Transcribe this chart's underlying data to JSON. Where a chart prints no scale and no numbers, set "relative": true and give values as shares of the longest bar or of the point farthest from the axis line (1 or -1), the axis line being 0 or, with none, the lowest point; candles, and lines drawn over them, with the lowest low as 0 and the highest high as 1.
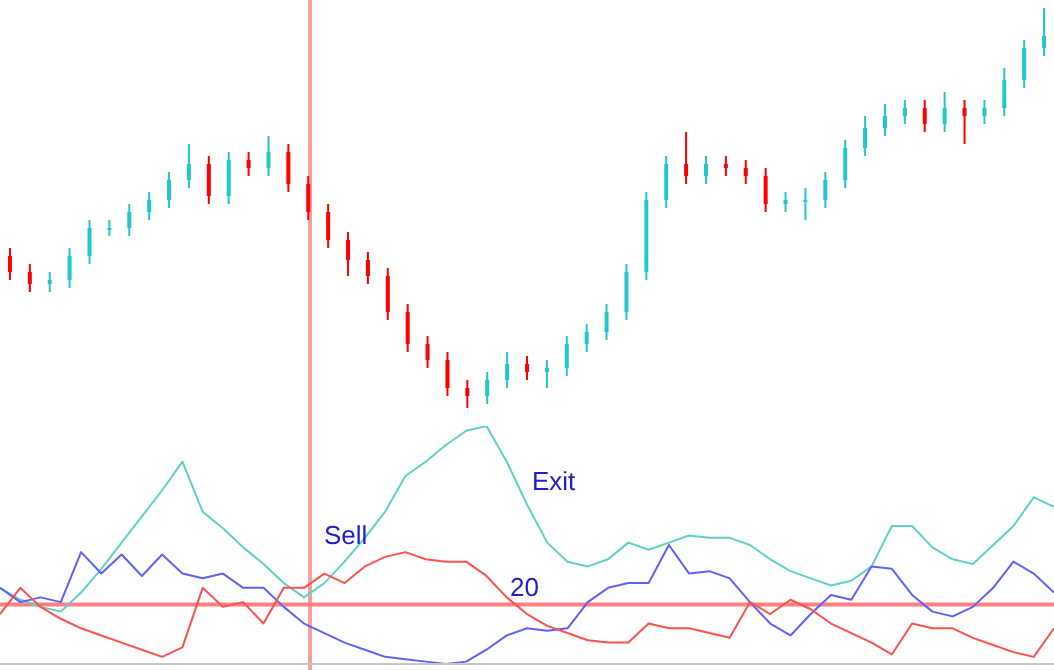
{
  "chart_data": [
    {
      "type": "candlestick",
      "relative": true,
      "categories": [
        null,
        null,
        null,
        null,
        null,
        null,
        null,
        null,
        null,
        null,
        null,
        null,
        null,
        null,
        null,
        null,
        null,
        null,
        null,
        null,
        null,
        null,
        null,
        null,
        null,
        null,
        null,
        null,
        null,
        null,
        null,
        null,
        null,
        null,
        null,
        null,
        null,
        null,
        null,
        null,
        null,
        null,
        null,
        null,
        null,
        null,
        null,
        null,
        null,
        null,
        null,
        null,
        null
      ],
      "ohlc": [
        [
          0.38,
          0.4,
          0.32,
          0.34
        ],
        [
          0.34,
          0.36,
          0.29,
          0.31
        ],
        [
          0.31,
          0.34,
          0.29,
          0.32
        ],
        [
          0.32,
          0.4,
          0.3,
          0.38
        ],
        [
          0.38,
          0.47,
          0.36,
          0.45
        ],
        [
          0.45,
          0.47,
          0.43,
          0.45
        ],
        [
          0.45,
          0.51,
          0.43,
          0.49
        ],
        [
          0.49,
          0.54,
          0.47,
          0.52
        ],
        [
          0.52,
          0.59,
          0.5,
          0.57
        ],
        [
          0.57,
          0.66,
          0.55,
          0.61
        ],
        [
          0.61,
          0.63,
          0.51,
          0.53
        ],
        [
          0.53,
          0.64,
          0.51,
          0.62
        ],
        [
          0.62,
          0.64,
          0.58,
          0.6
        ],
        [
          0.6,
          0.68,
          0.58,
          0.64
        ],
        [
          0.64,
          0.66,
          0.54,
          0.56
        ],
        [
          0.56,
          0.58,
          0.47,
          0.49
        ],
        [
          0.49,
          0.51,
          0.4,
          0.42
        ],
        [
          0.42,
          0.44,
          0.33,
          0.37
        ],
        [
          0.37,
          0.39,
          0.31,
          0.33
        ],
        [
          0.33,
          0.35,
          0.22,
          0.24
        ],
        [
          0.24,
          0.26,
          0.14,
          0.16
        ],
        [
          0.16,
          0.18,
          0.1,
          0.12
        ],
        [
          0.12,
          0.14,
          0.03,
          0.05
        ],
        [
          0.05,
          0.07,
          0.0,
          0.03
        ],
        [
          0.03,
          0.09,
          0.01,
          0.07
        ],
        [
          0.07,
          0.14,
          0.05,
          0.11
        ],
        [
          0.11,
          0.13,
          0.07,
          0.09
        ],
        [
          0.09,
          0.12,
          0.05,
          0.1
        ],
        [
          0.1,
          0.18,
          0.08,
          0.16
        ],
        [
          0.16,
          0.21,
          0.14,
          0.19
        ],
        [
          0.19,
          0.26,
          0.17,
          0.24
        ],
        [
          0.24,
          0.36,
          0.22,
          0.34
        ],
        [
          0.34,
          0.54,
          0.32,
          0.52
        ],
        [
          0.52,
          0.63,
          0.5,
          0.61
        ],
        [
          0.61,
          0.69,
          0.56,
          0.58
        ],
        [
          0.58,
          0.63,
          0.56,
          0.61
        ],
        [
          0.61,
          0.63,
          0.58,
          0.6
        ],
        [
          0.6,
          0.62,
          0.56,
          0.58
        ],
        [
          0.58,
          0.6,
          0.49,
          0.51
        ],
        [
          0.51,
          0.54,
          0.49,
          0.52
        ],
        [
          0.52,
          0.55,
          0.47,
          0.52
        ],
        [
          0.52,
          0.59,
          0.5,
          0.57
        ],
        [
          0.57,
          0.67,
          0.55,
          0.65
        ],
        [
          0.65,
          0.73,
          0.63,
          0.7
        ],
        [
          0.7,
          0.76,
          0.68,
          0.73
        ],
        [
          0.73,
          0.77,
          0.71,
          0.75
        ],
        [
          0.75,
          0.77,
          0.69,
          0.71
        ],
        [
          0.71,
          0.79,
          0.69,
          0.75
        ],
        [
          0.75,
          0.77,
          0.66,
          0.73
        ],
        [
          0.73,
          0.77,
          0.71,
          0.75
        ],
        [
          0.75,
          0.85,
          0.73,
          0.82
        ],
        [
          0.82,
          0.92,
          0.8,
          0.9
        ],
        [
          0.9,
          1.0,
          0.88,
          0.93
        ]
      ],
      "colors": [
        "#ff0000",
        "#ff0000",
        "#20c8c8",
        "#20c8c8",
        "#20c8c8",
        "#20c8c8",
        "#20c8c8",
        "#20c8c8",
        "#20c8c8",
        "#20c8c8",
        "#ff0000",
        "#20c8c8",
        "#ff0000",
        "#20c8c8",
        "#ff0000",
        "#ff0000",
        "#ff0000",
        "#ff0000",
        "#ff0000",
        "#ff0000",
        "#ff0000",
        "#ff0000",
        "#ff0000",
        "#ff0000",
        "#20c8c8",
        "#20c8c8",
        "#ff0000",
        "#20c8c8",
        "#20c8c8",
        "#20c8c8",
        "#20c8c8",
        "#20c8c8",
        "#20c8c8",
        "#20c8c8",
        "#ff0000",
        "#20c8c8",
        "#ff0000",
        "#ff0000",
        "#ff0000",
        "#20c8c8",
        "#20c8c8",
        "#20c8c8",
        "#20c8c8",
        "#20c8c8",
        "#20c8c8",
        "#20c8c8",
        "#ff0000",
        "#20c8c8",
        "#ff0000",
        "#20c8c8",
        "#20c8c8",
        "#20c8c8",
        "#20c8c8"
      ]
    },
    {
      "type": "line",
      "relative": true,
      "categories": [
        null,
        null,
        null,
        null,
        null,
        null,
        null,
        null,
        null,
        null,
        null,
        null,
        null,
        null,
        null,
        null,
        null,
        null,
        null,
        null,
        null,
        null,
        null,
        null,
        null,
        null,
        null,
        null,
        null,
        null,
        null,
        null,
        null,
        null,
        null,
        null,
        null,
        null,
        null,
        null,
        null,
        null,
        null,
        null,
        null,
        null,
        null,
        null,
        null,
        null,
        null,
        null,
        null
      ],
      "series": [
        {
          "color": "#5fd0c8",
          "values": [
            0.32,
            0.27,
            0.24,
            0.22,
            0.3,
            0.4,
            0.51,
            0.62,
            0.73,
            0.85,
            0.64,
            0.57,
            0.49,
            0.42,
            0.34,
            0.28,
            0.34,
            0.43,
            0.53,
            0.64,
            0.79,
            0.85,
            0.92,
            0.98,
            1.0,
            0.85,
            0.67,
            0.51,
            0.43,
            0.41,
            0.44,
            0.51,
            0.48,
            0.51,
            0.54,
            0.53,
            0.53,
            0.5,
            0.44,
            0.39,
            0.36,
            0.33,
            0.35,
            0.41,
            0.58,
            0.58,
            0.49,
            0.44,
            0.42,
            0.5,
            0.58,
            0.7,
            0.66
          ]
        },
        {
          "color": "#6060ff",
          "values": [
            0.32,
            0.26,
            0.28,
            0.26,
            0.47,
            0.38,
            0.46,
            0.37,
            0.46,
            0.38,
            0.36,
            0.38,
            0.32,
            0.32,
            0.24,
            0.17,
            0.13,
            0.09,
            0.06,
            0.03,
            0.02,
            0.01,
            0.0,
            0.01,
            0.06,
            0.12,
            0.15,
            0.14,
            0.15,
            0.26,
            0.32,
            0.34,
            0.34,
            0.5,
            0.38,
            0.39,
            0.36,
            0.26,
            0.17,
            0.12,
            0.21,
            0.29,
            0.27,
            0.41,
            0.4,
            0.29,
            0.22,
            0.2,
            0.24,
            0.32,
            0.43,
            0.38,
            0.3
          ]
        },
        {
          "color": "#ff5050",
          "values": [
            0.21,
            0.32,
            0.24,
            0.19,
            0.15,
            0.12,
            0.09,
            0.06,
            0.03,
            0.07,
            0.32,
            0.24,
            0.26,
            0.17,
            0.32,
            0.32,
            0.38,
            0.34,
            0.41,
            0.45,
            0.47,
            0.44,
            0.43,
            0.43,
            0.37,
            0.28,
            0.21,
            0.16,
            0.13,
            0.1,
            0.09,
            0.09,
            0.17,
            0.15,
            0.15,
            0.13,
            0.11,
            0.26,
            0.21,
            0.27,
            0.23,
            0.17,
            0.13,
            0.09,
            0.04,
            0.17,
            0.15,
            0.15,
            0.11,
            0.08,
            0.05,
            0.03,
            0.15
          ]
        }
      ],
      "ref_lines": [
        {
          "axis": "y",
          "value": 0.25,
          "color": "#ff8080"
        }
      ],
      "annotations": [
        "Sell",
        "Exit",
        "20"
      ]
    }
  ]
}
